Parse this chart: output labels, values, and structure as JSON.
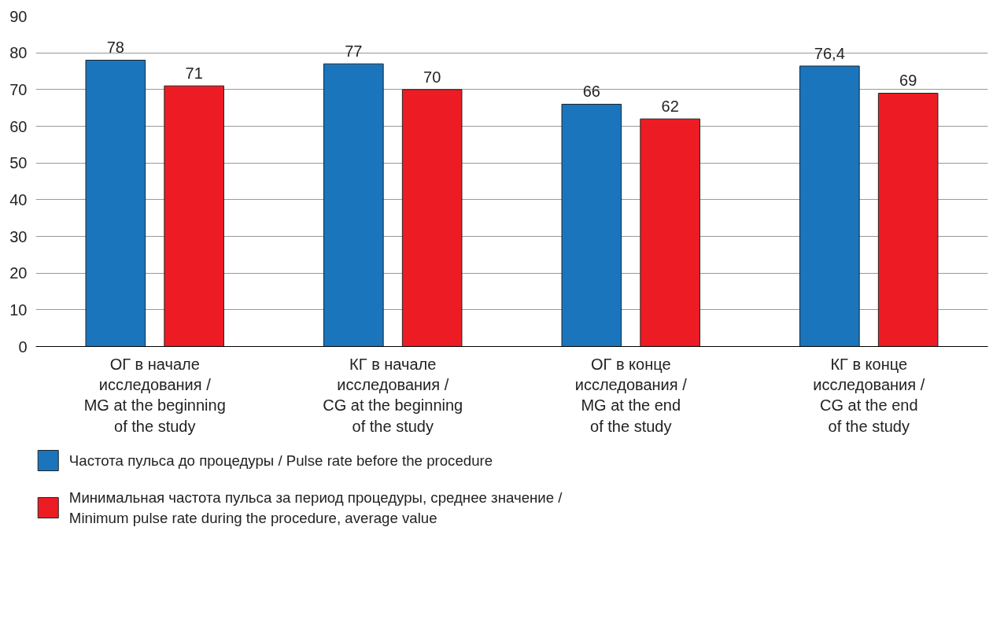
{
  "chart_data": {
    "type": "bar",
    "categories": [
      "ОГ в начале\nисследования /\nMG at the beginning\nof the study",
      "КГ в начале\nисследования /\nCG at the beginning\nof the study",
      "ОГ в конце\nисследования /\nMG at the end\nof the study",
      "КГ в конце\nисследования /\nCG at the end\nof the study"
    ],
    "series": [
      {
        "name": "Частота пульса до процедуры / Pulse rate before the procedure",
        "color": "#1a75bc",
        "values": [
          78,
          77,
          66,
          76.4
        ],
        "value_labels": [
          "78",
          "77",
          "66",
          "76,4"
        ]
      },
      {
        "name": "Минимальная частота пульса за период процедуры, среднее значение /\nMinimum pulse rate during the procedure, average value",
        "color": "#ed1c24",
        "values": [
          71,
          70,
          62,
          69
        ],
        "value_labels": [
          "71",
          "70",
          "62",
          "69"
        ]
      }
    ],
    "ylim": [
      0,
      90
    ],
    "yticks": [
      0,
      10,
      20,
      30,
      40,
      50,
      60,
      70,
      80,
      90
    ],
    "grid": "y",
    "legend": "bottom"
  }
}
